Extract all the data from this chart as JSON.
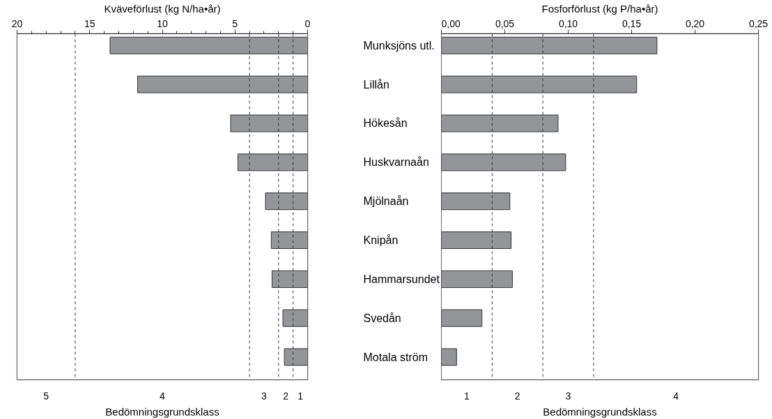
{
  "chart_data": [
    {
      "type": "bar",
      "orientation": "horizontal",
      "xlabel": "Kväveförlust (kg N/ha•år)",
      "categories": [
        "Munksjöns utl.",
        "Lillån",
        "Hökesån",
        "Huskvarnaån",
        "Mjölnaån",
        "Knipån",
        "Hammarsundet",
        "Svedån",
        "Motala ström"
      ],
      "values": [
        13.6,
        11.7,
        5.3,
        4.8,
        2.9,
        2.5,
        2.45,
        1.7,
        1.6
      ],
      "color": "#939598",
      "xlim": [
        20,
        0
      ],
      "xticks": [
        20,
        {
          "value": 19,
          "label": null
        },
        {
          "value": 18,
          "label": null
        },
        {
          "value": 17,
          "label": null
        },
        {
          "value": 16,
          "label": null
        },
        15,
        {
          "value": 14,
          "label": null
        },
        {
          "value": 13,
          "label": null
        },
        {
          "value": 12,
          "label": null
        },
        {
          "value": 11,
          "label": null
        },
        10,
        {
          "value": 9,
          "label": null
        },
        {
          "value": 8,
          "label": null
        },
        {
          "value": 7,
          "label": null
        },
        {
          "value": 6,
          "label": null
        },
        5,
        {
          "value": 4,
          "label": null
        },
        {
          "value": 3,
          "label": null
        },
        {
          "value": 2,
          "label": null
        },
        {
          "value": 1,
          "label": null
        },
        0
      ],
      "ref_lines": [
        {
          "axis": "x",
          "value": 16,
          "line_style": "dashed"
        },
        {
          "axis": "x",
          "value": 4,
          "line_style": "dashed"
        },
        {
          "axis": "x",
          "value": 2,
          "line_style": "dashed"
        },
        {
          "axis": "x",
          "value": 1,
          "line_style": "dashed"
        }
      ],
      "bands": [
        {
          "axis": "x",
          "from": 20,
          "to": 16,
          "label": "5",
          "color": "#ffffff"
        },
        {
          "axis": "x",
          "from": 16,
          "to": 4,
          "label": "4",
          "color": "#ffffff"
        },
        {
          "axis": "x",
          "from": 4,
          "to": 2,
          "label": "3",
          "color": "#ffffff"
        },
        {
          "axis": "x",
          "from": 2,
          "to": 1,
          "label": "2",
          "color": "#ffffff"
        },
        {
          "axis": "x",
          "from": 1,
          "to": 0,
          "label": "1",
          "color": "#ffffff"
        }
      ],
      "annotations": [
        "Bedömningsgrundsklass"
      ],
      "grid": false
    },
    {
      "type": "bar",
      "orientation": "horizontal",
      "xlabel": "Fosforförlust (kg P/ha•år)",
      "values": [
        0.17,
        0.154,
        0.092,
        0.098,
        0.054,
        0.055,
        0.056,
        0.032,
        0.012
      ],
      "color": "#939598",
      "xlim": [
        0,
        0.25
      ],
      "xticks": [
        {
          "value": 0,
          "label": "0,00"
        },
        {
          "value": 0.05,
          "label": "0,05"
        },
        {
          "value": 0.1,
          "label": "0,10"
        },
        {
          "value": 0.15,
          "label": "0,15"
        },
        {
          "value": 0.2,
          "label": "0,20"
        },
        {
          "value": 0.25,
          "label": "0,25"
        }
      ],
      "ref_lines": [
        {
          "axis": "x",
          "value": 0.04,
          "line_style": "dashed"
        },
        {
          "axis": "x",
          "value": 0.08,
          "line_style": "dashed"
        },
        {
          "axis": "x",
          "value": 0.12,
          "line_style": "dashed"
        }
      ],
      "bands": [
        {
          "axis": "x",
          "from": 0,
          "to": 0.04,
          "label": "1",
          "color": "#ffffff"
        },
        {
          "axis": "x",
          "from": 0.04,
          "to": 0.08,
          "label": "2",
          "color": "#ffffff"
        },
        {
          "axis": "x",
          "from": 0.08,
          "to": 0.12,
          "label": "3",
          "color": "#ffffff"
        },
        {
          "axis": "x",
          "from": 0.12,
          "to": 0.25,
          "label": "4",
          "color": "#ffffff"
        }
      ],
      "annotations": [
        "Bedömningsgrundsklass"
      ],
      "tick_labels": "x",
      "grid": false
    }
  ]
}
